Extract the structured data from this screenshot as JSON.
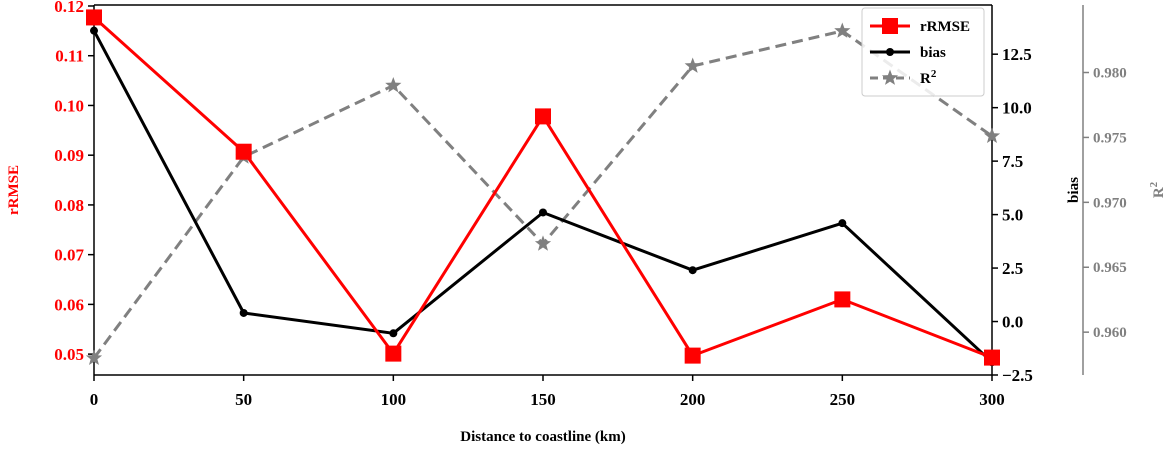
{
  "chart_data": {
    "type": "line",
    "title": "",
    "xlabel": "Distance to coastline (km)",
    "x": [
      0,
      50,
      100,
      150,
      200,
      250,
      300
    ],
    "xlim": [
      0,
      300
    ],
    "xticks": [
      "0",
      "50",
      "100",
      "150",
      "200",
      "250",
      "300"
    ],
    "axes": {
      "left": {
        "label": "rRMSE",
        "color": "#ff0000",
        "ylim": [
          0.0458,
          0.1202
        ],
        "ticks": [
          0.05,
          0.06,
          0.07,
          0.08,
          0.09,
          0.1,
          0.11,
          0.12
        ],
        "tick_labels": [
          "0.05",
          "0.06",
          "0.07",
          "0.08",
          "0.09",
          "0.10",
          "0.11",
          "0.12"
        ]
      },
      "right1": {
        "label": "bias",
        "color": "#000000",
        "ylim": [
          -2.5,
          14.8
        ],
        "ticks": [
          -2.5,
          0.0,
          2.5,
          5.0,
          7.5,
          10.0,
          12.5
        ],
        "tick_labels": [
          "−2.5",
          "0.0",
          "2.5",
          "5.0",
          "7.5",
          "10.0",
          "12.5"
        ]
      },
      "right2": {
        "label_base": "R",
        "label_sup": "2",
        "color": "#808080",
        "ylim": [
          0.9567,
          0.9852
        ],
        "ticks": [
          0.96,
          0.965,
          0.97,
          0.975,
          0.98
        ],
        "tick_labels": [
          "0.960",
          "0.965",
          "0.970",
          "0.975",
          "0.980"
        ]
      }
    },
    "series": [
      {
        "name": "rRMSE",
        "axis": "left",
        "color": "#ff0000",
        "marker": "square",
        "linestyle": "solid",
        "values": [
          0.1177,
          0.0907,
          0.0501,
          0.0978,
          0.0497,
          0.061,
          0.0493
        ]
      },
      {
        "name": "bias",
        "axis": "right1",
        "color": "#000000",
        "marker": "circle",
        "linestyle": "solid",
        "values": [
          13.6,
          0.4,
          -0.55,
          5.1,
          2.4,
          4.6,
          -1.9
        ]
      },
      {
        "name": "R",
        "name_sup": "2",
        "axis": "right2",
        "color": "#808080",
        "marker": "star",
        "linestyle": "dashed",
        "values": [
          0.958,
          0.9735,
          0.979,
          0.9668,
          0.9805,
          0.9832,
          0.9751
        ]
      }
    ],
    "legend": {
      "position": "top-right",
      "entries": [
        {
          "label": "rRMSE"
        },
        {
          "label": "bias"
        },
        {
          "label": "R",
          "sup": "2"
        }
      ]
    }
  }
}
